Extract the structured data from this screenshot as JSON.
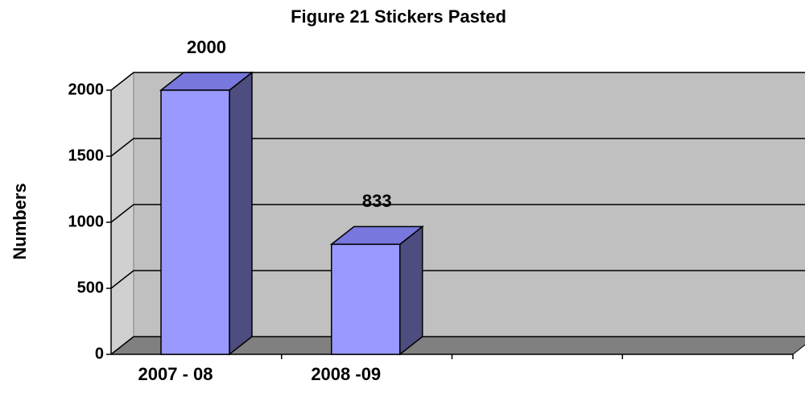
{
  "chart_data": {
    "type": "bar3d",
    "title": "Figure 21  Stickers Pasted",
    "y_label": "Numbers",
    "categories": [
      "2007 - 08",
      "2008 -09",
      null,
      null
    ],
    "values": [
      2000,
      833,
      null,
      null
    ],
    "color": "#9999ff",
    "ylim": [
      0,
      2000
    ],
    "yticks": [
      0,
      500,
      1000,
      1500,
      2000
    ],
    "grid": true
  }
}
